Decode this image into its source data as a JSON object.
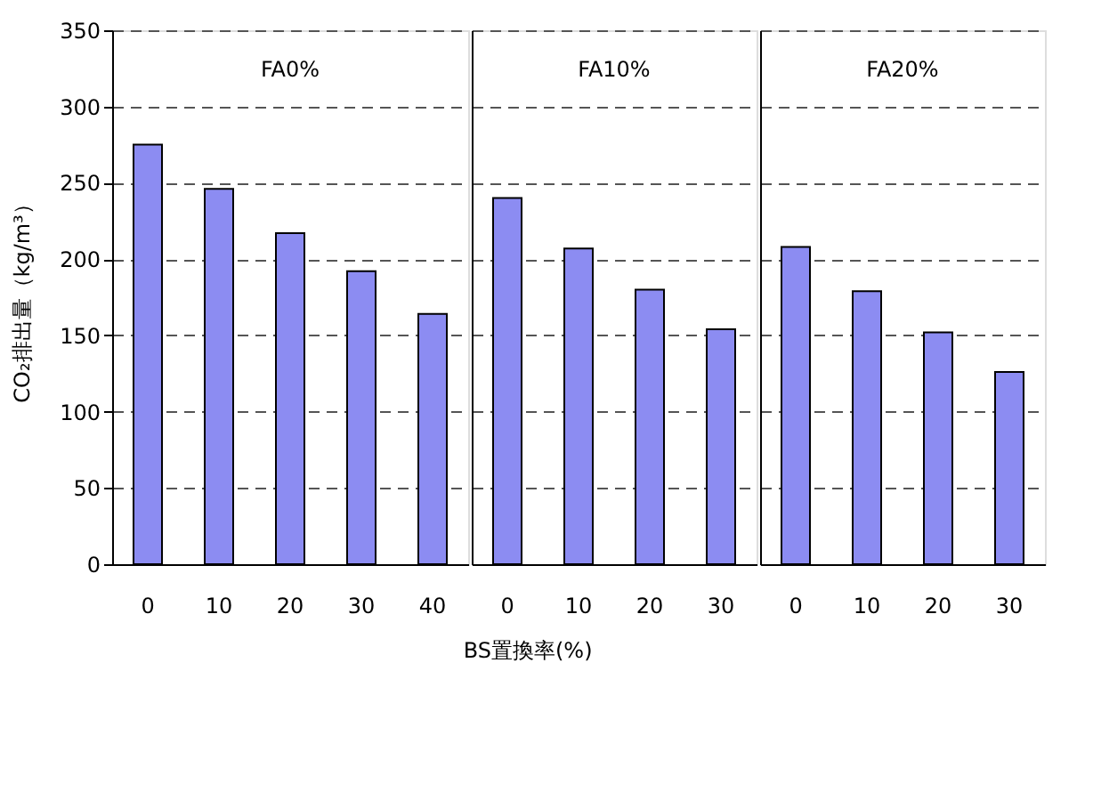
{
  "chart_data": [
    {
      "type": "bar",
      "ylabel": "CO₂排出量（kg/m³）",
      "categories": [
        "0",
        "10",
        "20",
        "30",
        "40"
      ],
      "values": [
        275,
        246,
        217,
        192,
        164
      ],
      "color": "#8c8cf2",
      "ylim": [
        0,
        350
      ],
      "yticks": [
        0,
        50,
        100,
        150,
        200,
        250,
        300,
        350
      ],
      "grid": "y",
      "annotations": [
        "FA0%"
      ]
    },
    {
      "type": "bar",
      "xlabel": "BS置換率(%)",
      "categories": [
        "0",
        "10",
        "20",
        "30"
      ],
      "values": [
        240,
        207,
        180,
        154
      ],
      "color": "#8c8cf2",
      "ylim": [
        0,
        350
      ],
      "yticks": [
        0,
        50,
        100,
        150,
        200,
        250,
        300,
        350
      ],
      "grid": "y",
      "tick_labels": "x",
      "annotations": [
        "FA10%"
      ]
    },
    {
      "type": "bar",
      "categories": [
        "0",
        "10",
        "20",
        "30"
      ],
      "values": [
        208,
        179,
        152,
        126
      ],
      "color": "#8c8cf2",
      "ylim": [
        0,
        350
      ],
      "yticks": [
        0,
        50,
        100,
        150,
        200,
        250,
        300,
        350
      ],
      "grid": "y",
      "tick_labels": "x",
      "annotations": [
        "FA20%"
      ]
    }
  ]
}
